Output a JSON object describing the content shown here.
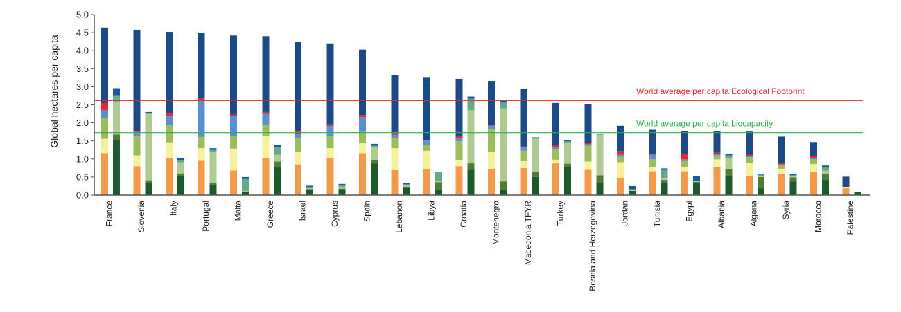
{
  "chart_data": {
    "type": "bar",
    "stacked": true,
    "title": "",
    "xlabel": "",
    "ylabel": "Global hectares per capita",
    "ylim": [
      0,
      5.0
    ],
    "yticks": [
      "0.0",
      "0.5",
      "1.0",
      "1.5",
      "2.0",
      "2.5",
      "3.0",
      "3.5",
      "4.0",
      "4.5",
      "5.0"
    ],
    "grid": false,
    "legend": "none",
    "categories": [
      "France",
      "Slovenia",
      "Italy",
      "Portugal",
      "Malta",
      "Greece",
      "Israel",
      "Cyprus",
      "Spain",
      "Lebanon",
      "Libya",
      "Croatia",
      "Montenegro",
      "Macedonia TFYR",
      "Turkey",
      "Bosnia and Herzegovina",
      "Jordan",
      "Tunisia",
      "Egypt",
      "Albania",
      "Algeria",
      "Syria",
      "Morocco",
      "Palestine"
    ],
    "footprint_bars": {
      "colors": [
        "#f5994a",
        "#f7f09c",
        "#9bbd5b",
        "#5b8fd2",
        "#e8262b",
        "#1c4a86"
      ],
      "series": [
        {
          "values": [
            1.16,
            0.8,
            1.02,
            0.95,
            0.68,
            1.02,
            0.85,
            1.04,
            1.16,
            0.69,
            0.72,
            0.8,
            0.72,
            0.75,
            0.88,
            0.7,
            0.47,
            0.66,
            0.66,
            0.77,
            0.54,
            0.58,
            0.65,
            0.19
          ]
        },
        {
          "values": [
            0.4,
            0.3,
            0.44,
            0.35,
            0.61,
            0.61,
            0.35,
            0.26,
            0.28,
            0.61,
            0.51,
            0.16,
            0.47,
            0.19,
            0.1,
            0.23,
            0.44,
            0.11,
            0.12,
            0.22,
            0.35,
            0.15,
            0.21,
            0.03
          ]
        },
        {
          "values": [
            0.57,
            0.53,
            0.47,
            0.31,
            0.34,
            0.32,
            0.39,
            0.33,
            0.31,
            0.27,
            0.15,
            0.53,
            0.64,
            0.29,
            0.3,
            0.44,
            0.15,
            0.22,
            0.16,
            0.11,
            0.16,
            0.09,
            0.13,
            0.0
          ]
        },
        {
          "values": [
            0.22,
            0.09,
            0.26,
            1.01,
            0.56,
            0.3,
            0.11,
            0.28,
            0.41,
            0.1,
            0.13,
            0.08,
            0.09,
            0.09,
            0.06,
            0.04,
            0.06,
            0.13,
            0.05,
            0.03,
            0.04,
            0.03,
            0.04,
            0.0
          ]
        },
        {
          "values": [
            0.2,
            0.04,
            0.07,
            0.06,
            0.04,
            0.05,
            0.06,
            0.05,
            0.06,
            0.05,
            0.02,
            0.06,
            0.03,
            0.03,
            0.04,
            0.04,
            0.1,
            0.03,
            0.16,
            0.05,
            0.03,
            0.04,
            0.06,
            0.01
          ]
        },
        {
          "values": [
            2.09,
            2.82,
            2.26,
            1.82,
            2.19,
            2.1,
            2.49,
            2.24,
            1.81,
            1.6,
            1.72,
            1.59,
            1.21,
            1.6,
            1.17,
            1.07,
            0.7,
            0.66,
            0.63,
            0.6,
            0.64,
            0.73,
            0.38,
            0.28
          ]
        }
      ]
    },
    "biocapacity_bars": {
      "colors": [
        "#1d5a2b",
        "#4f7c36",
        "#aecb91",
        "#63a98a",
        "#1a5aa2"
      ],
      "series": [
        {
          "values": [
            1.52,
            0.34,
            0.53,
            0.27,
            0.08,
            0.78,
            0.15,
            0.15,
            0.88,
            0.2,
            0.15,
            0.7,
            0.15,
            0.5,
            0.77,
            0.36,
            0.12,
            0.34,
            0.36,
            0.52,
            0.19,
            0.38,
            0.42,
            0.09
          ]
        },
        {
          "values": [
            0.16,
            0.07,
            0.07,
            0.07,
            0.02,
            0.15,
            0.02,
            0.03,
            0.1,
            0.03,
            0.21,
            0.18,
            0.23,
            0.14,
            0.1,
            0.19,
            0.0,
            0.08,
            0.0,
            0.21,
            0.31,
            0.11,
            0.17,
            0.0
          ]
        },
        {
          "values": [
            0.91,
            1.84,
            0.31,
            0.85,
            0.01,
            0.19,
            0.02,
            0.05,
            0.35,
            0.04,
            0.04,
            1.47,
            2.02,
            0.92,
            0.57,
            1.12,
            0.04,
            0.05,
            0.02,
            0.29,
            0.03,
            0.03,
            0.09,
            0.0
          ]
        },
        {
          "values": [
            0.16,
            0.02,
            0.06,
            0.06,
            0.34,
            0.22,
            0.03,
            0.04,
            0.04,
            0.03,
            0.23,
            0.32,
            0.16,
            0.03,
            0.05,
            0.01,
            0.0,
            0.23,
            0.0,
            0.08,
            0.02,
            0.03,
            0.09,
            0.0
          ]
        },
        {
          "values": [
            0.21,
            0.03,
            0.06,
            0.05,
            0.05,
            0.05,
            0.04,
            0.04,
            0.05,
            0.04,
            0.02,
            0.06,
            0.05,
            0.01,
            0.04,
            0.02,
            0.09,
            0.04,
            0.15,
            0.05,
            0.02,
            0.04,
            0.05,
            0.0
          ]
        }
      ]
    },
    "reference_lines": [
      {
        "label": "World average per capita Ecological Footprint",
        "value": 2.62,
        "color": "#e8262b"
      },
      {
        "label": "World average per capita biocapacity",
        "value": 1.73,
        "color": "#2bb24c"
      }
    ]
  }
}
